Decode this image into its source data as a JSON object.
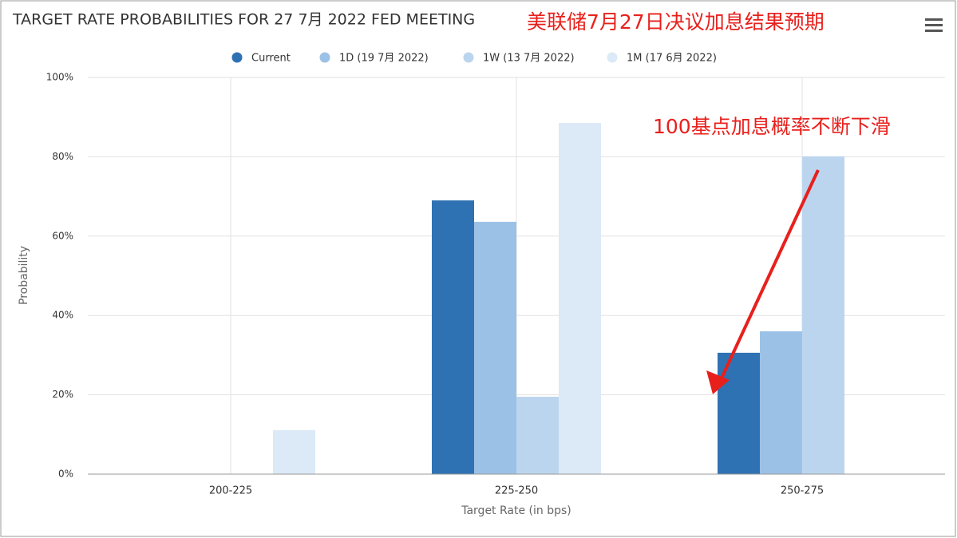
{
  "chart_data": {
    "type": "bar",
    "title": "TARGET RATE PROBABILITIES FOR 27 7月 2022 FED MEETING",
    "annotations": [
      "美联储7月27日决议加息结果预期",
      "100基点加息概率不断下滑"
    ],
    "x_label": "Target Rate (in bps)",
    "y_label": "Probability",
    "categories": [
      "200-225",
      "225-250",
      "250-275"
    ],
    "series": [
      {
        "name": "Current",
        "color": "#2f72b3",
        "values": [
          0,
          69.0,
          30.6
        ]
      },
      {
        "name": "1D (19 7月 2022)",
        "color": "#9cc1e6",
        "values": [
          0,
          63.6,
          36.0
        ]
      },
      {
        "name": "1W (13 7月 2022)",
        "color": "#bcd5ee",
        "values": [
          0,
          19.5,
          80.1
        ]
      },
      {
        "name": "1M (17 6月 2022)",
        "color": "#dce9f6",
        "values": [
          11.1,
          88.5,
          0
        ]
      }
    ],
    "ylim": [
      0,
      100
    ],
    "yticks": [
      {
        "value": 0,
        "label": "0%"
      },
      {
        "value": 20,
        "label": "20%"
      },
      {
        "value": 40,
        "label": "40%"
      },
      {
        "value": 60,
        "label": "60%"
      },
      {
        "value": 80,
        "label": "80%"
      },
      {
        "value": 100,
        "label": "100%"
      }
    ],
    "grid": true
  }
}
